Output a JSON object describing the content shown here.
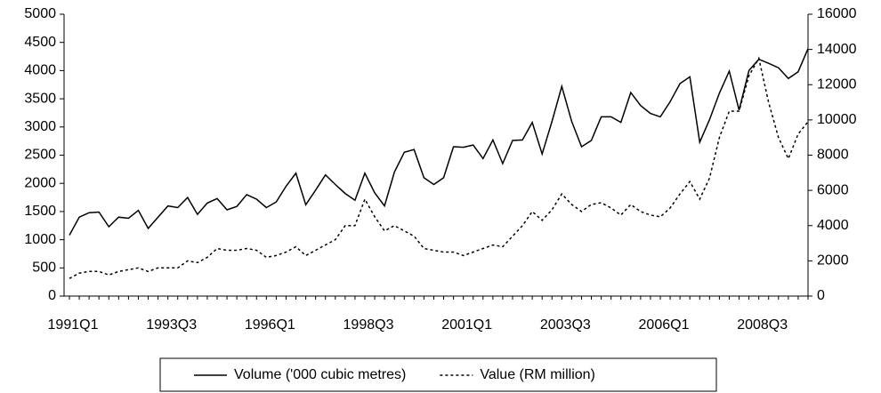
{
  "chart_data": {
    "type": "line",
    "categories": [
      "1991Q1",
      null,
      null,
      null,
      null,
      null,
      null,
      null,
      null,
      null,
      "1993Q3",
      null,
      null,
      null,
      null,
      null,
      null,
      null,
      null,
      null,
      "1996Q1",
      null,
      null,
      null,
      null,
      null,
      null,
      null,
      null,
      null,
      "1998Q3",
      null,
      null,
      null,
      null,
      null,
      null,
      null,
      null,
      null,
      "2001Q1",
      null,
      null,
      null,
      null,
      null,
      null,
      null,
      null,
      null,
      "2003Q3",
      null,
      null,
      null,
      null,
      null,
      null,
      null,
      null,
      null,
      "2006Q1",
      null,
      null,
      null,
      null,
      null,
      null,
      null,
      null,
      null,
      "2008Q3",
      null,
      null,
      null,
      null,
      null
    ],
    "series": [
      {
        "name": "Volume ('000 cubic metres)",
        "color": "#000000",
        "dash": "solid",
        "values": [
          1080,
          1400,
          1480,
          1490,
          1230,
          1400,
          1380,
          1520,
          1200,
          1400,
          1600,
          1570,
          1750,
          1450,
          1650,
          1730,
          1530,
          1590,
          1800,
          1720,
          1570,
          1670,
          1950,
          2180,
          1620,
          1880,
          2150,
          1980,
          1820,
          1700,
          2180,
          1830,
          1600,
          2200,
          2550,
          2600,
          2100,
          1980,
          2100,
          2650,
          2640,
          2680,
          2440,
          2770,
          2350,
          2760,
          2770,
          3080,
          2520,
          3100,
          3720,
          3100,
          2650,
          2760,
          3180,
          3180,
          3080,
          3610,
          3380,
          3240,
          3180,
          3450,
          3770,
          3890,
          2730,
          3130,
          3600,
          3990,
          3300,
          4000,
          4200,
          4130,
          4050,
          3860,
          3980,
          4390
        ]
      },
      {
        "name": "Value (RM million)",
        "color": "#000000",
        "dash": "dotted",
        "axis": "y2",
        "values": [
          1000,
          1300,
          1400,
          1400,
          1200,
          1400,
          1500,
          1600,
          1400,
          1600,
          1600,
          1600,
          2000,
          1900,
          2200,
          2700,
          2600,
          2600,
          2700,
          2600,
          2200,
          2300,
          2500,
          2800,
          2300,
          2600,
          2900,
          3200,
          4000,
          4000,
          5500,
          4500,
          3700,
          4000,
          3700,
          3400,
          2700,
          2600,
          2500,
          2500,
          2300,
          2500,
          2700,
          2900,
          2800,
          3400,
          4000,
          4800,
          4300,
          4900,
          5800,
          5200,
          4800,
          5200,
          5300,
          5000,
          4600,
          5200,
          4800,
          4600,
          4500,
          5000,
          5800,
          6500,
          5500,
          6700,
          9000,
          10500,
          10500,
          12500,
          13500,
          11000,
          9000,
          7800,
          9200,
          9900
        ]
      }
    ],
    "ylim": [
      0,
      5000
    ],
    "yticks": [
      0,
      500,
      1000,
      1500,
      2000,
      2500,
      3000,
      3500,
      4000,
      4500,
      5000
    ],
    "y2lim": [
      0,
      16000
    ],
    "y2ticks": [
      0,
      2000,
      4000,
      6000,
      8000,
      10000,
      12000,
      14000,
      16000
    ],
    "grid": false,
    "legend": "bottom"
  }
}
